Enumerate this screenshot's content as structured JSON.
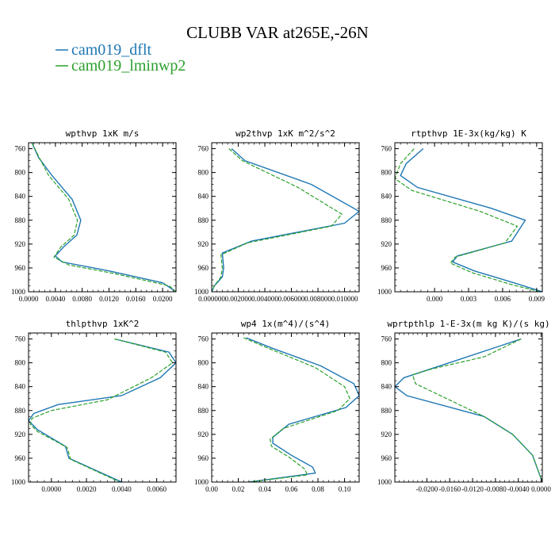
{
  "figure": {
    "title": "CLUBB VAR at265E,-26N",
    "legend": [
      {
        "label": "cam019_dflt",
        "color": "#1f77b4",
        "dash": "solid"
      },
      {
        "label": "cam019_lminwp2",
        "color": "#2ca02c",
        "dash": "dashed"
      }
    ]
  },
  "chart_data": [
    {
      "type": "line",
      "title": "wpthvp  1xK m/s",
      "ylim": [
        1000,
        750
      ],
      "yticks": [
        "760",
        "800",
        "840",
        "880",
        "920",
        "960",
        "1000"
      ],
      "xlim": [
        0.0,
        0.022
      ],
      "xticks": [
        "0.0000",
        "0.0040",
        "0.0080",
        "0.0120",
        "0.0160",
        "0.0200"
      ],
      "series": [
        {
          "name": "cam019_dflt",
          "x": [
            0.0005,
            0.0015,
            0.0035,
            0.0065,
            0.0078,
            0.0072,
            0.0052,
            0.004,
            0.005,
            0.012,
            0.02,
            0.022
          ],
          "y": [
            750,
            775,
            805,
            845,
            880,
            905,
            925,
            940,
            950,
            965,
            985,
            1000
          ]
        },
        {
          "name": "cam019_lminwp2",
          "x": [
            0.0005,
            0.0016,
            0.003,
            0.006,
            0.0073,
            0.0068,
            0.0048,
            0.0038,
            0.006,
            0.013,
            0.021,
            0.022
          ],
          "y": [
            750,
            775,
            805,
            845,
            880,
            905,
            925,
            942,
            955,
            970,
            990,
            1000
          ]
        }
      ]
    },
    {
      "type": "line",
      "title": "wp2thvp  1xK m^2/s^2",
      "ylim": [
        1000,
        750
      ],
      "yticks": [
        "760",
        "800",
        "840",
        "880",
        "920",
        "960",
        "1000"
      ],
      "xlim": [
        0.0,
        0.0111
      ],
      "xticks": [
        "0.000000",
        "0.002000",
        "0.004000",
        "0.006000",
        "0.008000",
        "0.010000"
      ],
      "series": [
        {
          "name": "cam019_dflt",
          "x": [
            0.0015,
            0.0025,
            0.0075,
            0.0111,
            0.01,
            0.003,
            0.0008,
            0.0009,
            0.0008,
            0.0002,
            0.0
          ],
          "y": [
            760,
            780,
            820,
            865,
            885,
            915,
            935,
            960,
            975,
            990,
            1000
          ]
        },
        {
          "name": "cam019_lminwp2",
          "x": [
            0.0013,
            0.0023,
            0.0065,
            0.0098,
            0.009,
            0.0027,
            0.0007,
            0.0008,
            0.0007,
            0.0002,
            0.0
          ],
          "y": [
            760,
            780,
            825,
            870,
            890,
            918,
            938,
            960,
            975,
            990,
            1000
          ]
        }
      ]
    },
    {
      "type": "line",
      "title": "rtpthvp  1E-3x(kg/kg) K",
      "ylim": [
        1000,
        750
      ],
      "yticks": [
        "760",
        "800",
        "840",
        "880",
        "920",
        "960",
        "1000"
      ],
      "xlim": [
        -0.0035,
        0.0095
      ],
      "xticks": [
        "0.000",
        "0.003",
        "0.006",
        "0.009"
      ],
      "series": [
        {
          "name": "cam019_dflt",
          "x": [
            -0.001,
            -0.0025,
            -0.003,
            -0.0015,
            0.005,
            0.008,
            0.0068,
            0.002,
            0.0016,
            0.0035,
            0.007,
            0.0095
          ],
          "y": [
            760,
            785,
            805,
            825,
            860,
            880,
            915,
            940,
            950,
            965,
            985,
            1000
          ]
        },
        {
          "name": "cam019_lminwp2",
          "x": [
            -0.0018,
            -0.003,
            -0.0035,
            -0.002,
            0.004,
            0.0073,
            0.0062,
            0.0018,
            0.0014,
            0.0033,
            0.0068,
            0.0093
          ],
          "y": [
            760,
            785,
            810,
            830,
            865,
            890,
            918,
            942,
            952,
            968,
            988,
            1000
          ]
        }
      ]
    },
    {
      "type": "line",
      "title": "thlpthvp  1xK^2",
      "ylim": [
        1000,
        750
      ],
      "yticks": [
        "760",
        "800",
        "840",
        "880",
        "920",
        "960",
        "1000"
      ],
      "xlim": [
        -0.0013,
        0.0071
      ],
      "xticks": [
        "0.0000",
        "0.0020",
        "0.0040",
        "0.0060"
      ],
      "series": [
        {
          "name": "cam019_dflt",
          "x": [
            0.0036,
            0.0067,
            0.0071,
            0.0062,
            0.004,
            0.0004,
            -0.001,
            -0.0013,
            -0.0008,
            0.0008,
            0.001,
            0.004
          ],
          "y": [
            760,
            782,
            800,
            825,
            855,
            870,
            885,
            897,
            912,
            940,
            960,
            1000
          ]
        },
        {
          "name": "cam019_lminwp2",
          "x": [
            0.0036,
            0.0065,
            0.0069,
            0.0057,
            0.0032,
            0.0,
            -0.0011,
            -0.0012,
            -0.0008,
            0.0009,
            0.0011,
            0.0039
          ],
          "y": [
            760,
            782,
            800,
            825,
            862,
            880,
            893,
            903,
            915,
            942,
            962,
            1000
          ]
        }
      ]
    },
    {
      "type": "line",
      "title": "wp4  1x(m^4)/(s^4)",
      "ylim": [
        1000,
        750
      ],
      "yticks": [
        "760",
        "800",
        "840",
        "880",
        "920",
        "960",
        "1000"
      ],
      "xlim": [
        0.0,
        0.111
      ],
      "xticks": [
        "0.00",
        "0.02",
        "0.04",
        "0.06",
        "0.08",
        "0.10"
      ],
      "series": [
        {
          "name": "cam019_dflt",
          "x": [
            0.026,
            0.045,
            0.082,
            0.107,
            0.111,
            0.101,
            0.058,
            0.046,
            0.046,
            0.06,
            0.076,
            0.078,
            0.028
          ],
          "y": [
            758,
            775,
            805,
            835,
            855,
            875,
            903,
            925,
            935,
            955,
            975,
            985,
            1000
          ]
        },
        {
          "name": "cam019_lminwp2",
          "x": [
            0.024,
            0.042,
            0.078,
            0.1,
            0.104,
            0.095,
            0.054,
            0.044,
            0.045,
            0.058,
            0.07,
            0.072,
            0.028
          ],
          "y": [
            758,
            775,
            808,
            840,
            860,
            880,
            910,
            928,
            940,
            958,
            978,
            988,
            1000
          ]
        }
      ]
    },
    {
      "type": "line",
      "title": "wprtpthlp  1-E-3x(m kg K)/(s kg)",
      "ylim": [
        1000,
        750
      ],
      "yticks": [
        "760",
        "800",
        "840",
        "880",
        "920",
        "960",
        "1000"
      ],
      "xlim": [
        -0.0256,
        0.0002
      ],
      "xticks": [
        "-0.0200",
        "-0.0160",
        "-0.0120",
        "-0.0080",
        "-0.0040",
        "0.0000"
      ],
      "series": [
        {
          "name": "cam019_dflt",
          "x": [
            -0.0035,
            -0.0145,
            -0.024,
            -0.0256,
            -0.0235,
            -0.01,
            -0.005,
            -0.0015,
            0.0002
          ],
          "y": [
            760,
            795,
            825,
            840,
            855,
            890,
            920,
            955,
            1000
          ]
        },
        {
          "name": "cam019_lminwp2",
          "x": [
            -0.0035,
            -0.01,
            -0.019,
            -0.0225,
            -0.022,
            -0.01,
            -0.005,
            -0.0015,
            0.0002
          ],
          "y": [
            760,
            790,
            810,
            820,
            835,
            890,
            920,
            955,
            1000
          ]
        }
      ]
    }
  ]
}
